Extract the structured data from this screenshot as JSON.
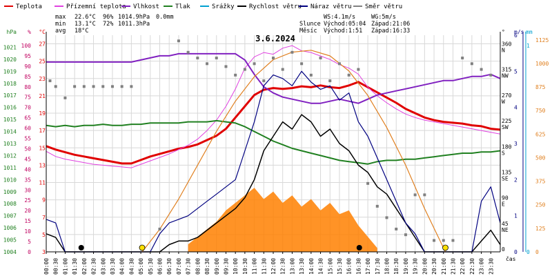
{
  "legend": [
    {
      "label": "Teplota",
      "color": "#e00000"
    },
    {
      "label": "Přízemní teplota",
      "color": "#e040e0"
    },
    {
      "label": "Vlhkost",
      "color": "#8020c0"
    },
    {
      "label": "Tlak",
      "color": "#208020"
    },
    {
      "label": "Srážky",
      "color": "#00a0d0"
    },
    {
      "label": "Rychlost větru",
      "color": "#000000"
    },
    {
      "label": "Náraz větru",
      "color": "#000080"
    },
    {
      "label": "Směr větru",
      "color": "#808080"
    }
  ],
  "stats": {
    "max_label": "max",
    "max_temp": "22.6°C",
    "max_hum": "96%",
    "max_press": "1014.9hPa",
    "max_rain": "0.0mm",
    "min_label": "min",
    "min_temp": "13.1°C",
    "min_hum": "72%",
    "min_press": "1011.3hPa",
    "avg_label": "avg",
    "avg_temp": "18°C"
  },
  "wind_info": {
    "ws": "WS:4.1m/s",
    "wg": "WG:5m/s"
  },
  "sun_info": {
    "label": "Slunce",
    "rise": "Východ:05:04",
    "set": "Západ:21:06"
  },
  "moon_info": {
    "label": "Měsíc",
    "rise": "Východ:1:51",
    "set": "Západ:16:33"
  },
  "date": "3.6.2024",
  "colors": {
    "temp": "#e00000",
    "ground": "#e040e0",
    "hum": "#8020c0",
    "press": "#208020",
    "rain": "#00a0d0",
    "wind": "#000000",
    "gust": "#000080",
    "dir": "#808080",
    "sun": "#e08020",
    "solar": "#ff8000",
    "grid": "#d8d8d8",
    "title": "#000000"
  },
  "chart_data": {
    "type": "line",
    "title": "3.6.2024",
    "xlabel": "čas",
    "x_ticks": [
      "00:00",
      "00:30",
      "01:00",
      "01:30",
      "02:00",
      "02:30",
      "03:00",
      "03:30",
      "04:00",
      "04:30",
      "05:00",
      "05:30",
      "06:00",
      "06:30",
      "07:00",
      "07:30",
      "08:00",
      "08:30",
      "09:00",
      "09:30",
      "10:00",
      "10:30",
      "11:00",
      "11:30",
      "12:00",
      "12:30",
      "13:00",
      "13:30",
      "14:00",
      "14:30",
      "15:00",
      "15:30",
      "16:00",
      "16:30",
      "17:00",
      "17:30",
      "18:00",
      "18:30",
      "19:00",
      "19:30",
      "20:00",
      "20:30",
      "21:00",
      "21:30",
      "22:00",
      "22:30",
      "23:00",
      "23:30"
    ],
    "axes": {
      "hpa": {
        "label": "hPa",
        "ticks": [
          "1004",
          "1005",
          "1006",
          "1007",
          "1008",
          "1009",
          "1010",
          "1011",
          "1012",
          "1013",
          "1014",
          "1015",
          "1016",
          "1017",
          "1018",
          "1019",
          "1020",
          "1021"
        ],
        "range": [
          1004,
          1022
        ]
      },
      "pct": {
        "label": "%",
        "ticks": [
          "0",
          "5",
          "10",
          "15",
          "20",
          "25",
          "30",
          "35",
          "40",
          "45",
          "50",
          "55",
          "60",
          "65",
          "70",
          "75",
          "80",
          "85",
          "90",
          "95",
          "100"
        ],
        "range": [
          0,
          105
        ]
      },
      "degc": {
        "label": "°C",
        "ticks": [
          "3",
          "5",
          "7",
          "9",
          "11",
          "13",
          "15",
          "17",
          "19",
          "21",
          "23",
          "25",
          "27"
        ],
        "range": [
          3,
          28
        ]
      },
      "dir": {
        "label": "°",
        "ticks": [
          {
            "deg": "0",
            "dir": ""
          },
          {
            "deg": "45",
            "dir": "NE"
          },
          {
            "deg": "90",
            "dir": "E"
          },
          {
            "deg": "135",
            "dir": "SE"
          },
          {
            "deg": "180",
            "dir": "S"
          },
          {
            "deg": "225",
            "dir": "SW"
          },
          {
            "deg": "270",
            "dir": "W"
          },
          {
            "deg": "315",
            "dir": "NW"
          },
          {
            "deg": "360",
            "dir": "N"
          }
        ],
        "range": [
          0,
          380
        ]
      },
      "ms": {
        "label": "m/s",
        "ticks": [
          "0",
          "1",
          "2",
          "3",
          "4",
          "5",
          "6"
        ],
        "range": [
          0,
          6
        ]
      },
      "mm": {
        "label": "mm",
        "ticks": [
          "0",
          "1"
        ],
        "range": [
          0,
          1
        ]
      },
      "wm2": {
        "label": "",
        "ticks": [
          "0",
          "125",
          "250",
          "375",
          "500",
          "625",
          "750",
          "875",
          "1000",
          "1125"
        ],
        "range": [
          0,
          1150
        ]
      }
    },
    "series": [
      {
        "name": "Teplota",
        "axis": "degc",
        "x": [
          0,
          0.5,
          1,
          1.5,
          2,
          2.5,
          3,
          3.5,
          4,
          4.5,
          5,
          5.5,
          6,
          6.5,
          7,
          7.5,
          8,
          8.5,
          9,
          9.5,
          10,
          10.5,
          11,
          11.5,
          12,
          12.5,
          13,
          13.5,
          14,
          14.5,
          15,
          15.5,
          16,
          16.5,
          17,
          17.5,
          18,
          18.5,
          19,
          19.5,
          20,
          20.5,
          21,
          21.5,
          22,
          22.5,
          23,
          23.5,
          24
        ],
        "y": [
          15.2,
          14.8,
          14.5,
          14.2,
          14,
          13.8,
          13.6,
          13.4,
          13.2,
          13.2,
          13.6,
          14,
          14.3,
          14.6,
          14.9,
          15.1,
          15.4,
          15.9,
          16.4,
          17.2,
          18.5,
          19.8,
          21.1,
          21.7,
          21.9,
          21.8,
          21.9,
          22.1,
          22.0,
          22.2,
          22.0,
          21.9,
          22.2,
          22.6,
          22.0,
          21.4,
          20.8,
          20.2,
          19.5,
          19.0,
          18.5,
          18.2,
          18.0,
          17.9,
          17.8,
          17.6,
          17.5,
          17.2,
          17.1
        ]
      },
      {
        "name": "Přízemní teplota",
        "axis": "degc",
        "x": [
          0,
          0.5,
          1,
          1.5,
          2,
          2.5,
          3,
          3.5,
          4,
          4.5,
          5,
          5.5,
          6,
          6.5,
          7,
          7.5,
          8,
          8.5,
          9,
          9.5,
          10,
          10.5,
          11,
          11.5,
          12,
          12.5,
          13,
          13.5,
          14,
          14.5,
          15,
          15.5,
          16,
          16.5,
          17,
          17.5,
          18,
          18.5,
          19,
          19.5,
          20,
          20.5,
          21,
          21.5,
          22,
          22.5,
          23,
          23.5,
          24
        ],
        "y": [
          14.6,
          14,
          13.7,
          13.5,
          13.3,
          13.1,
          13.0,
          12.9,
          12.8,
          12.7,
          13.1,
          13.5,
          13.9,
          14.3,
          14.8,
          15.3,
          16.0,
          17.0,
          18.2,
          19.8,
          21.8,
          24.2,
          25.5,
          26.0,
          25.8,
          26.5,
          26.8,
          26.2,
          26.0,
          25.6,
          25.2,
          24.6,
          24.2,
          23.5,
          22.0,
          21.0,
          20.2,
          19.5,
          18.9,
          18.5,
          18.2,
          18.0,
          17.8,
          17.6,
          17.4,
          17.2,
          17.0,
          16.8,
          16.6
        ]
      },
      {
        "name": "Vlhkost",
        "axis": "pct",
        "x": [
          0,
          0.5,
          1,
          1.5,
          2,
          2.5,
          3,
          3.5,
          4,
          4.5,
          5,
          5.5,
          6,
          6.5,
          7,
          7.5,
          8,
          8.5,
          9,
          9.5,
          10,
          10.5,
          11,
          11.5,
          12,
          12.5,
          13,
          13.5,
          14,
          14.5,
          15,
          15.5,
          16,
          16.5,
          17,
          17.5,
          18,
          18.5,
          19,
          19.5,
          20,
          20.5,
          21,
          21.5,
          22,
          22.5,
          23,
          23.5,
          24
        ],
        "y": [
          92,
          92,
          92,
          92,
          92,
          92,
          92,
          92,
          92,
          92,
          93,
          94,
          95,
          95,
          96,
          96,
          96,
          96,
          96,
          96,
          96,
          93,
          86,
          80,
          77,
          75,
          74,
          73,
          72,
          72,
          73,
          74,
          73,
          72,
          74,
          76,
          77,
          78,
          79,
          80,
          81,
          82,
          83,
          83,
          84,
          85,
          85,
          86,
          84
        ]
      },
      {
        "name": "Tlak",
        "axis": "hpa",
        "x": [
          0,
          0.5,
          1,
          1.5,
          2,
          2.5,
          3,
          3.5,
          4,
          4.5,
          5,
          5.5,
          6,
          6.5,
          7,
          7.5,
          8,
          8.5,
          9,
          9.5,
          10,
          10.5,
          11,
          11.5,
          12,
          12.5,
          13,
          13.5,
          14,
          14.5,
          15,
          15.5,
          16,
          16.5,
          17,
          17.5,
          18,
          18.5,
          19,
          19.5,
          20,
          20.5,
          21,
          21.5,
          22,
          22.5,
          23,
          23.5,
          24
        ],
        "y": [
          1014.5,
          1014.4,
          1014.5,
          1014.4,
          1014.5,
          1014.5,
          1014.6,
          1014.5,
          1014.5,
          1014.6,
          1014.6,
          1014.7,
          1014.7,
          1014.7,
          1014.7,
          1014.8,
          1014.8,
          1014.8,
          1014.9,
          1014.8,
          1014.7,
          1014.4,
          1014.0,
          1013.6,
          1013.2,
          1012.9,
          1012.6,
          1012.4,
          1012.2,
          1012.0,
          1011.8,
          1011.6,
          1011.5,
          1011.4,
          1011.3,
          1011.5,
          1011.6,
          1011.6,
          1011.7,
          1011.7,
          1011.8,
          1011.9,
          1012.0,
          1012.1,
          1012.2,
          1012.2,
          1012.3,
          1012.3,
          1012.4
        ]
      },
      {
        "name": "Rychlost větru",
        "axis": "ms",
        "x": [
          0,
          0.5,
          1,
          1.5,
          2,
          2.5,
          3,
          3.5,
          4,
          4.5,
          5,
          5.5,
          6,
          6.5,
          7,
          7.5,
          8,
          8.5,
          9,
          9.5,
          10,
          10.5,
          11,
          11.5,
          12,
          12.5,
          13,
          13.5,
          14,
          14.5,
          15,
          15.5,
          16,
          16.5,
          17,
          17.5,
          18,
          18.5,
          19,
          19.5,
          20,
          20.5,
          21,
          21.5,
          22,
          22.5,
          23,
          23.5,
          24
        ],
        "y": [
          0.5,
          0.4,
          0,
          0,
          0,
          0,
          0,
          0,
          0,
          0,
          0,
          0,
          0,
          0.2,
          0.3,
          0.3,
          0.4,
          0.6,
          0.8,
          1.0,
          1.2,
          1.5,
          2.0,
          2.8,
          3.2,
          3.6,
          3.4,
          3.8,
          3.6,
          3.2,
          3.4,
          3.0,
          2.8,
          2.4,
          2.2,
          1.8,
          1.6,
          1.2,
          0.8,
          0.4,
          0,
          0,
          0,
          0,
          0,
          0,
          0.3,
          0.6,
          0.2
        ]
      },
      {
        "name": "Náraz větru",
        "axis": "ms",
        "x": [
          0,
          0.5,
          1,
          1.5,
          2,
          2.5,
          3,
          3.5,
          4,
          4.5,
          5,
          5.5,
          6,
          6.5,
          7,
          7.5,
          8,
          8.5,
          9,
          9.5,
          10,
          10.5,
          11,
          11.5,
          12,
          12.5,
          13,
          13.5,
          14,
          14.5,
          15,
          15.5,
          16,
          16.5,
          17,
          17.5,
          18,
          18.5,
          19,
          19.5,
          20,
          20.5,
          21,
          21.5,
          22,
          22.5,
          23,
          23.5,
          24
        ],
        "y": [
          0.9,
          0.8,
          0,
          0,
          0,
          0,
          0,
          0,
          0,
          0,
          0,
          0,
          0.5,
          0.8,
          0.9,
          1.0,
          1.2,
          1.4,
          1.6,
          1.8,
          2.0,
          2.8,
          3.6,
          4.6,
          4.9,
          4.8,
          4.6,
          5.0,
          4.7,
          4.5,
          4.6,
          4.2,
          4.4,
          3.6,
          3.2,
          2.6,
          2.0,
          1.4,
          0.8,
          0.5,
          0,
          0,
          0,
          0,
          0,
          0,
          1.4,
          1.8,
          0.8
        ]
      },
      {
        "name": "Směr větru",
        "axis": "dir",
        "type": "scatter",
        "x": [
          0.2,
          0.5,
          1,
          1.5,
          2,
          2.5,
          3,
          3.5,
          4,
          4.5,
          6,
          7,
          7.5,
          8,
          8.5,
          9,
          9.5,
          10,
          10.5,
          11,
          11.5,
          12,
          12.5,
          13,
          13.5,
          14,
          14.5,
          15,
          15.5,
          16,
          16.5,
          17,
          17.5,
          18,
          18.5,
          19,
          19.5,
          20,
          20.5,
          21,
          21.5,
          22,
          22.5,
          23,
          23.5
        ],
        "y": [
          300,
          290,
          270,
          290,
          290,
          290,
          290,
          290,
          290,
          290,
          40,
          370,
          350,
          340,
          330,
          340,
          325,
          310,
          320,
          330,
          300,
          340,
          320,
          350,
          330,
          310,
          340,
          300,
          330,
          310,
          320,
          120,
          80,
          60,
          40,
          30,
          100,
          100,
          20,
          20,
          20,
          340,
          330,
          320,
          310
        ]
      },
      {
        "name": "Slunce",
        "axis": "wm2",
        "x": [
          5.07,
          6,
          7,
          8,
          9,
          10,
          11,
          12,
          13,
          14,
          15,
          16,
          17,
          18,
          19,
          20,
          21.1
        ],
        "y": [
          0,
          120,
          280,
          460,
          640,
          800,
          930,
          1020,
          1060,
          1070,
          1040,
          960,
          830,
          660,
          460,
          230,
          0
        ]
      },
      {
        "name": "Solar",
        "axis": "wm2",
        "type": "area",
        "x": [
          7.5,
          8,
          8.5,
          9,
          9.5,
          10,
          10.5,
          11,
          11.5,
          12,
          12.5,
          13,
          13.5,
          14,
          14.5,
          15,
          15.5,
          16,
          16.5,
          17,
          17.5
        ],
        "y": [
          40,
          80,
          120,
          160,
          220,
          260,
          300,
          340,
          280,
          320,
          260,
          300,
          240,
          280,
          220,
          260,
          200,
          220,
          140,
          80,
          20
        ]
      }
    ]
  }
}
